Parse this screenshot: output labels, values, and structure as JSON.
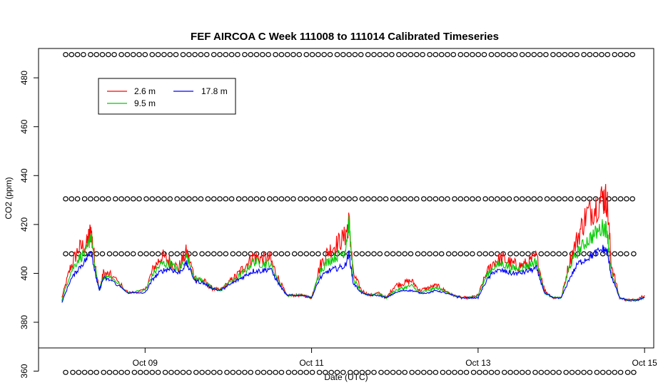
{
  "chart_data": {
    "type": "line",
    "title": "FEF AIRCOA C  Week 111008 to 111014  Calibrated Timeseries",
    "xlabel": "Date (UTC)",
    "ylabel": "CO2 (ppm)",
    "xlim": [
      7.72,
      15.11
    ],
    "ylim": [
      369.5,
      492
    ],
    "x_ticks": [
      {
        "value": 9,
        "label": "Oct 09"
      },
      {
        "value": 11,
        "label": "Oct 11"
      },
      {
        "value": 13,
        "label": "Oct 13"
      },
      {
        "value": 15,
        "label": "Oct 15"
      }
    ],
    "y_ticks": [
      360,
      380,
      400,
      420,
      440,
      460,
      480
    ],
    "legend": {
      "position": "top-left",
      "entries": [
        {
          "label": "2.6 m",
          "color": "#ff0000"
        },
        {
          "label": "9.5 m",
          "color": "#00cc00"
        },
        {
          "label": "17.8 m",
          "color": "#0000ff"
        }
      ]
    },
    "series": [
      {
        "name": "2.6 m",
        "color": "#ff0000",
        "x": [
          8.0,
          8.1,
          8.2,
          8.3,
          8.35,
          8.4,
          8.45,
          8.5,
          8.6,
          8.8,
          9.0,
          9.1,
          9.2,
          9.3,
          9.4,
          9.5,
          9.6,
          9.7,
          9.8,
          9.9,
          10.0,
          10.1,
          10.2,
          10.3,
          10.4,
          10.5,
          10.6,
          10.7,
          10.8,
          10.9,
          11.0,
          11.1,
          11.2,
          11.3,
          11.4,
          11.45,
          11.5,
          11.6,
          11.7,
          11.8,
          11.9,
          12.0,
          12.1,
          12.2,
          12.3,
          12.4,
          12.5,
          12.6,
          12.7,
          12.8,
          12.9,
          13.0,
          13.1,
          13.2,
          13.3,
          13.4,
          13.5,
          13.6,
          13.7,
          13.8,
          13.9,
          14.0,
          14.1,
          14.2,
          14.3,
          14.4,
          14.5,
          14.55,
          14.6,
          14.7,
          14.8,
          14.9,
          15.0
        ],
        "y": [
          390,
          402,
          410,
          412,
          418,
          404,
          393,
          400,
          399,
          392,
          393,
          402,
          407,
          405,
          402,
          409,
          398,
          397,
          394,
          393,
          396,
          399,
          403,
          407,
          406,
          406,
          398,
          391,
          391,
          391,
          390,
          403,
          409,
          412,
          415,
          421,
          400,
          393,
          391,
          392,
          390,
          395,
          396,
          397,
          393,
          394,
          395,
          393,
          391,
          390,
          390,
          391,
          400,
          405,
          406,
          404,
          403,
          404,
          407,
          393,
          390,
          390,
          405,
          415,
          424,
          427,
          431,
          430,
          404,
          390,
          389,
          389,
          391
        ]
      },
      {
        "name": "9.5 m",
        "color": "#00cc00",
        "x": [
          8.0,
          8.1,
          8.2,
          8.3,
          8.35,
          8.4,
          8.45,
          8.5,
          8.6,
          8.8,
          9.0,
          9.1,
          9.2,
          9.3,
          9.4,
          9.5,
          9.6,
          9.7,
          9.8,
          9.9,
          10.0,
          10.1,
          10.2,
          10.3,
          10.4,
          10.5,
          10.6,
          10.7,
          10.8,
          10.9,
          11.0,
          11.1,
          11.2,
          11.3,
          11.4,
          11.45,
          11.5,
          11.6,
          11.7,
          11.8,
          11.9,
          12.0,
          12.1,
          12.2,
          12.3,
          12.4,
          12.5,
          12.6,
          12.7,
          12.8,
          12.9,
          13.0,
          13.1,
          13.2,
          13.3,
          13.4,
          13.5,
          13.6,
          13.7,
          13.8,
          13.9,
          14.0,
          14.1,
          14.2,
          14.3,
          14.4,
          14.5,
          14.55,
          14.6,
          14.7,
          14.8,
          14.9,
          15.0
        ],
        "y": [
          389,
          400,
          406,
          409,
          416,
          402,
          393,
          399,
          398,
          392,
          393,
          400,
          404,
          404,
          401,
          407,
          398,
          397,
          394,
          393,
          396,
          398,
          401,
          405,
          404,
          404,
          397,
          391,
          391,
          391,
          390,
          401,
          405,
          407,
          409,
          421,
          398,
          392,
          391,
          392,
          390,
          393,
          394,
          395,
          392,
          393,
          394,
          393,
          391,
          390,
          390,
          391,
          399,
          403,
          404,
          402,
          402,
          403,
          405,
          392,
          390,
          390,
          403,
          409,
          413,
          416,
          419,
          418,
          400,
          390,
          389,
          389,
          390
        ]
      },
      {
        "name": "17.8 m",
        "color": "#0000ff",
        "x": [
          8.0,
          8.1,
          8.2,
          8.3,
          8.35,
          8.4,
          8.45,
          8.5,
          8.6,
          8.8,
          9.0,
          9.1,
          9.2,
          9.3,
          9.4,
          9.5,
          9.6,
          9.7,
          9.8,
          9.9,
          10.0,
          10.1,
          10.2,
          10.3,
          10.4,
          10.5,
          10.6,
          10.7,
          10.8,
          10.9,
          11.0,
          11.1,
          11.2,
          11.3,
          11.4,
          11.45,
          11.5,
          11.6,
          11.7,
          11.8,
          11.9,
          12.0,
          12.1,
          12.2,
          12.3,
          12.4,
          12.5,
          12.6,
          12.7,
          12.8,
          12.9,
          13.0,
          13.1,
          13.2,
          13.3,
          13.4,
          13.5,
          13.6,
          13.7,
          13.8,
          13.9,
          14.0,
          14.1,
          14.2,
          14.3,
          14.4,
          14.5,
          14.55,
          14.6,
          14.7,
          14.8,
          14.9,
          15.0
        ],
        "y": [
          388,
          397,
          402,
          406,
          410,
          400,
          393,
          398,
          397,
          392,
          392,
          398,
          401,
          402,
          400,
          404,
          397,
          396,
          394,
          393,
          395,
          397,
          399,
          401,
          401,
          402,
          396,
          391,
          391,
          391,
          390,
          398,
          401,
          402,
          403,
          408,
          396,
          392,
          391,
          391,
          390,
          392,
          393,
          393,
          392,
          392,
          393,
          392,
          391,
          390,
          390,
          390,
          397,
          401,
          401,
          400,
          400,
          401,
          402,
          392,
          390,
          390,
          398,
          404,
          406,
          408,
          410,
          409,
          399,
          390,
          389,
          389,
          390
        ]
      },
      {
        "name": "",
        "color": "#000000",
        "style": "markers",
        "marker_rows_y": [
          359.5,
          408,
          430.5,
          489.5
        ]
      }
    ]
  }
}
